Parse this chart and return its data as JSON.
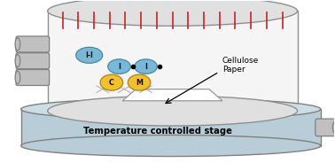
{
  "bg_color": "#ffffff",
  "stage_fill": "#b8cdd8",
  "stage_edge": "#808080",
  "stage_top_fill": "#ccdde6",
  "chamber_fill": "#f5f5f5",
  "chamber_edge": "#909090",
  "chamber_top_fill": "#e0e0e0",
  "cylinder_fill": "#c0c0c0",
  "cylinder_edge": "#808080",
  "blue_fill": "#7ab8d8",
  "blue_edge": "#4a88a8",
  "yellow_fill": "#f0c030",
  "yellow_edge": "#b08010",
  "red_line": "#cc2020",
  "text_color": "#000000",
  "stage_label": "Temperature controlled stage",
  "cellulose_label": "Cellulose\nPaper",
  "blue_labels": [
    "I-I",
    "I",
    "I"
  ],
  "yellow_labels": [
    "C",
    "M"
  ]
}
